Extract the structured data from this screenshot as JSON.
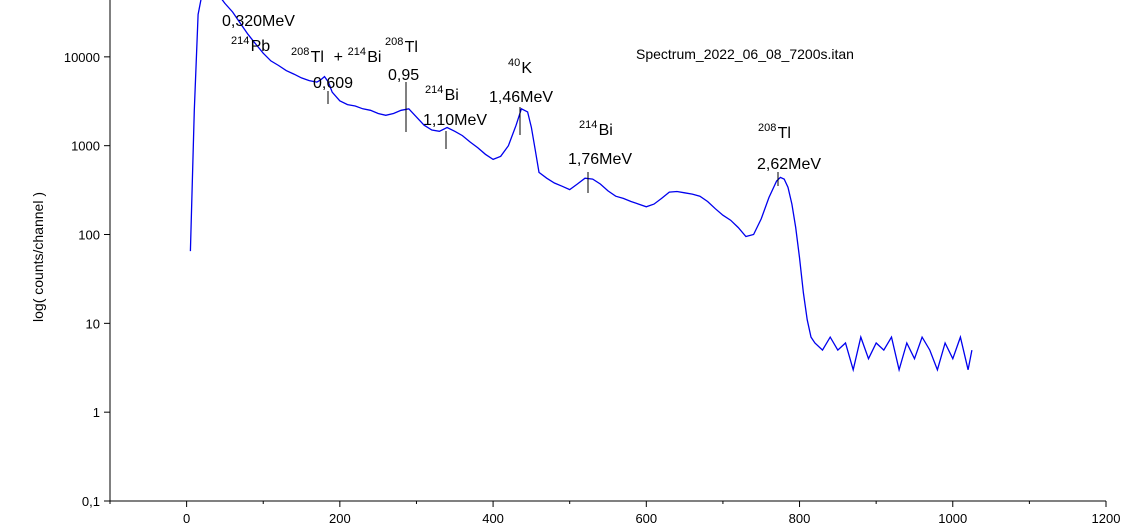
{
  "chart_data": {
    "type": "line",
    "title": "Spectrum_2022_06_08_7200s.itan",
    "xlabel": "",
    "ylabel": "log( counts/channel )",
    "xlim": [
      -100,
      1200
    ],
    "ylim": [
      0.1,
      40000
    ],
    "y_scale": "log",
    "x_ticks": [
      "0",
      "200",
      "400",
      "600",
      "800",
      "1000",
      "1200"
    ],
    "y_ticks": [
      "0,1",
      "1",
      "10",
      "100",
      "1000",
      "10000"
    ],
    "line_color": "#0000ee",
    "series": [
      {
        "x": [
          5,
          10,
          15,
          20,
          25,
          30,
          40,
          50,
          60,
          70,
          80,
          90,
          100,
          110,
          120,
          130,
          140,
          150,
          160,
          170,
          175,
          180,
          185,
          190,
          200,
          210,
          220,
          230,
          240,
          250,
          260,
          270,
          280,
          290,
          300,
          310,
          320,
          330,
          340,
          350,
          360,
          370,
          380,
          390,
          400,
          410,
          420,
          430,
          437,
          445,
          450,
          455,
          460,
          470,
          480,
          490,
          500,
          510,
          520,
          530,
          540,
          550,
          560,
          570,
          580,
          590,
          600,
          610,
          620,
          630,
          640,
          650,
          660,
          670,
          680,
          690,
          700,
          710,
          720,
          730,
          740,
          750,
          760,
          770,
          775,
          780,
          785,
          790,
          795,
          800,
          805,
          810,
          815,
          820,
          830,
          840,
          850,
          860,
          870,
          880,
          890,
          900,
          910,
          920,
          930,
          940,
          950,
          960,
          970,
          980,
          990,
          1000,
          1010,
          1020,
          1025
        ],
        "y": [
          65,
          2500,
          30000,
          50000,
          70000,
          68000,
          52000,
          40000,
          32000,
          24000,
          18000,
          14000,
          11000,
          9000,
          8000,
          7000,
          6400,
          5800,
          5400,
          5200,
          5500,
          6000,
          5200,
          4000,
          3200,
          2900,
          2800,
          2600,
          2500,
          2300,
          2200,
          2300,
          2500,
          2600,
          2100,
          1700,
          1500,
          1450,
          1600,
          1450,
          1300,
          1100,
          950,
          800,
          700,
          760,
          1000,
          1700,
          2600,
          2400,
          1600,
          900,
          500,
          430,
          380,
          350,
          320,
          370,
          430,
          420,
          370,
          310,
          270,
          255,
          235,
          220,
          205,
          220,
          255,
          300,
          305,
          295,
          285,
          270,
          235,
          195,
          165,
          145,
          120,
          95,
          100,
          150,
          260,
          400,
          440,
          420,
          340,
          220,
          120,
          55,
          22,
          11,
          7,
          6,
          5,
          7,
          5,
          6,
          3,
          7,
          4,
          6,
          5,
          7,
          3,
          6,
          4,
          7,
          5,
          3,
          6,
          4,
          7,
          3,
          5
        ]
      }
    ],
    "annotations": [
      {
        "sup": "",
        "main": "0,320MeV",
        "energy": ""
      },
      {
        "sup": "214",
        "main": "Pb",
        "energy": ""
      },
      {
        "sup": "208",
        "main": "Tl",
        "sup2": "214",
        "main2": "Bi",
        "energy": "0,609"
      },
      {
        "sup": "208",
        "main": "Tl",
        "energy": "0,95"
      },
      {
        "sup": "214",
        "main": "Bi",
        "energy": "1,10MeV"
      },
      {
        "sup": "40",
        "main": "K",
        "energy": "1,46MeV"
      },
      {
        "sup": "214",
        "main": "Bi",
        "energy": "1,76MeV"
      },
      {
        "sup": "208",
        "main": "Tl",
        "energy": "2,62MeV"
      }
    ]
  }
}
